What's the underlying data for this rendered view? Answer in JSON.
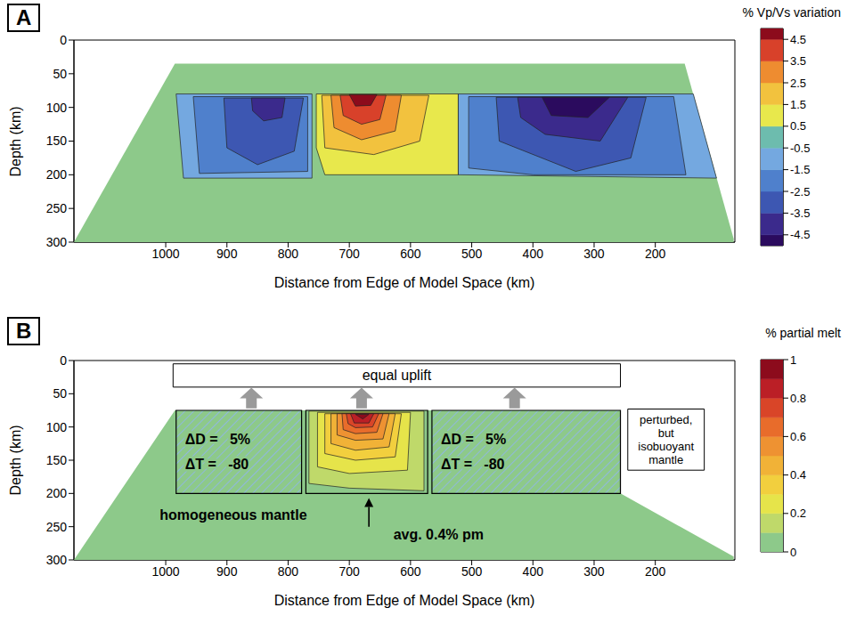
{
  "chart_data": [
    {
      "type": "contour",
      "panel_label": "A",
      "x_label": "Distance from Edge of Model Space (km)",
      "y_label": "Depth (km)",
      "xlim": [
        1150,
        70
      ],
      "xticks": [
        1000,
        900,
        800,
        700,
        600,
        500,
        400,
        300,
        200
      ],
      "ylim": [
        300,
        0
      ],
      "yticks": [
        0,
        50,
        100,
        150,
        200,
        250,
        300
      ],
      "model_space": {
        "color": "#8dc98a",
        "polygon": [
          [
            1150,
            300
          ],
          [
            985,
            35
          ],
          [
            152,
            35
          ],
          [
            72,
            295
          ],
          [
            72,
            300
          ]
        ]
      },
      "colorbar": {
        "label": "% Vp/Vs variation",
        "lim": [
          -5,
          5
        ],
        "ticks": [
          4.5,
          3.5,
          2.5,
          1.5,
          0.5,
          -0.5,
          -1.5,
          -2.5,
          -3.5,
          -4.5
        ],
        "bands": [
          {
            "from": -5,
            "to": -4.5,
            "color": "#2b0b5e"
          },
          {
            "from": -4.5,
            "to": -3.5,
            "color": "#3b2a8c"
          },
          {
            "from": -3.5,
            "to": -2.5,
            "color": "#3d57b2"
          },
          {
            "from": -2.5,
            "to": -1.5,
            "color": "#4f80cc"
          },
          {
            "from": -1.5,
            "to": -0.5,
            "color": "#74a8e0"
          },
          {
            "from": -0.5,
            "to": 0.5,
            "color": "#6dbcae"
          },
          {
            "from": 0.5,
            "to": 1.5,
            "color": "#e8e84c"
          },
          {
            "from": 1.5,
            "to": 2.5,
            "color": "#f2c23e"
          },
          {
            "from": 2.5,
            "to": 3.5,
            "color": "#ee8c30"
          },
          {
            "from": 3.5,
            "to": 4.5,
            "color": "#d8412a"
          },
          {
            "from": 4.5,
            "to": 5,
            "color": "#8c0b1c"
          }
        ]
      },
      "regions": [
        {
          "level": -1,
          "polygon": [
            [
              983,
              80
            ],
            [
              761,
              80
            ],
            [
              761,
              205
            ],
            [
              971,
              205
            ]
          ]
        },
        {
          "level": -2,
          "polygon": [
            [
              955,
              84
            ],
            [
              768,
              84
            ],
            [
              768,
              195
            ],
            [
              945,
              198
            ]
          ]
        },
        {
          "level": -3,
          "polygon": [
            [
              905,
              86
            ],
            [
              775,
              86
            ],
            [
              790,
              165
            ],
            [
              850,
              185
            ],
            [
              900,
              160
            ]
          ]
        },
        {
          "level": -4,
          "polygon": [
            [
              860,
              86
            ],
            [
              805,
              86
            ],
            [
              810,
              115
            ],
            [
              840,
              120
            ],
            [
              858,
              105
            ]
          ]
        },
        {
          "level": 1,
          "polygon": [
            [
              754,
              80
            ],
            [
              522,
              80
            ],
            [
              522,
              200
            ],
            [
              740,
              200
            ],
            [
              754,
              160
            ]
          ]
        },
        {
          "level": 2,
          "polygon": [
            [
              745,
              82
            ],
            [
              570,
              82
            ],
            [
              585,
              150
            ],
            [
              660,
              170
            ],
            [
              740,
              160
            ]
          ]
        },
        {
          "level": 3,
          "polygon": [
            [
              730,
              82
            ],
            [
              615,
              82
            ],
            [
              625,
              135
            ],
            [
              680,
              148
            ],
            [
              725,
              130
            ]
          ]
        },
        {
          "level": 4,
          "polygon": [
            [
              715,
              82
            ],
            [
              640,
              82
            ],
            [
              650,
              118
            ],
            [
              680,
              125
            ],
            [
              710,
              112
            ]
          ]
        },
        {
          "level": 4.7,
          "polygon": [
            [
              700,
              81
            ],
            [
              655,
              81
            ],
            [
              665,
              97
            ],
            [
              690,
              98
            ]
          ]
        },
        {
          "level": -1,
          "polygon": [
            [
              522,
              80
            ],
            [
              138,
              80
            ],
            [
              100,
              205
            ],
            [
              522,
              200
            ]
          ]
        },
        {
          "level": -2,
          "polygon": [
            [
              505,
              84
            ],
            [
              170,
              84
            ],
            [
              150,
              200
            ],
            [
              400,
              200
            ],
            [
              505,
              190
            ]
          ]
        },
        {
          "level": -3,
          "polygon": [
            [
              460,
              85
            ],
            [
              215,
              85
            ],
            [
              240,
              175
            ],
            [
              330,
              195
            ],
            [
              455,
              150
            ]
          ]
        },
        {
          "level": -4,
          "polygon": [
            [
              425,
              85
            ],
            [
              245,
              85
            ],
            [
              290,
              150
            ],
            [
              380,
              140
            ],
            [
              420,
              115
            ]
          ]
        },
        {
          "level": -4.7,
          "polygon": [
            [
              385,
              85
            ],
            [
              275,
              85
            ],
            [
              310,
              115
            ],
            [
              370,
              112
            ]
          ]
        }
      ]
    },
    {
      "type": "contour",
      "panel_label": "B",
      "x_label": "Distance from Edge of Model Space (km)",
      "y_label": "Depth (km)",
      "xlim": [
        1150,
        70
      ],
      "xticks": [
        1000,
        900,
        800,
        700,
        600,
        500,
        400,
        300,
        200
      ],
      "ylim": [
        300,
        0
      ],
      "yticks": [
        0,
        50,
        100,
        150,
        200,
        250,
        300
      ],
      "model_space": {
        "color": "#8dc98a",
        "polygon": [
          [
            1150,
            300
          ],
          [
            985,
            75
          ],
          [
            257,
            75
          ],
          [
            257,
            200
          ],
          [
            72,
            295
          ],
          [
            72,
            300
          ]
        ]
      },
      "colorbar": {
        "label": "% partial melt",
        "lim": [
          0,
          1
        ],
        "ticks": [
          1,
          0.8,
          0.6,
          0.4,
          0.2,
          0
        ],
        "bands": [
          {
            "from": 0,
            "to": 0.1,
            "color": "#8dc98a"
          },
          {
            "from": 0.1,
            "to": 0.2,
            "color": "#bfd96a"
          },
          {
            "from": 0.2,
            "to": 0.3,
            "color": "#e6e44a"
          },
          {
            "from": 0.3,
            "to": 0.4,
            "color": "#f2cf3e"
          },
          {
            "from": 0.4,
            "to": 0.5,
            "color": "#f1b237"
          },
          {
            "from": 0.5,
            "to": 0.6,
            "color": "#ee9232"
          },
          {
            "from": 0.6,
            "to": 0.7,
            "color": "#e86c2b"
          },
          {
            "from": 0.7,
            "to": 0.8,
            "color": "#d94528"
          },
          {
            "from": 0.8,
            "to": 0.9,
            "color": "#bb1f26"
          },
          {
            "from": 0.9,
            "to": 1,
            "color": "#8c0b1c"
          }
        ]
      },
      "perturbed_blocks": [
        {
          "polygon": [
            [
              983,
              75
            ],
            [
              778,
              75
            ],
            [
              778,
              200
            ],
            [
              983,
              200
            ]
          ],
          "text": [
            "ΔD =   5%",
            "ΔT =   -80"
          ]
        },
        {
          "polygon": [
            [
              565,
              75
            ],
            [
              257,
              75
            ],
            [
              257,
              200
            ],
            [
              565,
              200
            ]
          ],
          "text": [
            "ΔD =   5%",
            "ΔT =   -80"
          ]
        }
      ],
      "regions": [
        {
          "level": 0.15,
          "polygon": [
            [
              766,
              76
            ],
            [
              578,
              76
            ],
            [
              578,
              196
            ],
            [
              700,
              192
            ],
            [
              766,
              185
            ]
          ]
        },
        {
          "level": 0.25,
          "polygon": [
            [
              752,
              78
            ],
            [
              600,
              78
            ],
            [
              605,
              165
            ],
            [
              700,
              170
            ],
            [
              752,
              160
            ]
          ]
        },
        {
          "level": 0.35,
          "polygon": [
            [
              740,
              80
            ],
            [
              615,
              80
            ],
            [
              625,
              145
            ],
            [
              690,
              150
            ],
            [
              740,
              140
            ]
          ]
        },
        {
          "level": 0.45,
          "polygon": [
            [
              730,
              80
            ],
            [
              625,
              80
            ],
            [
              635,
              130
            ],
            [
              690,
              135
            ],
            [
              730,
              125
            ]
          ]
        },
        {
          "level": 0.55,
          "polygon": [
            [
              720,
              80
            ],
            [
              635,
              80
            ],
            [
              645,
              118
            ],
            [
              690,
              120
            ],
            [
              720,
              112
            ]
          ]
        },
        {
          "level": 0.65,
          "polygon": [
            [
              712,
              80
            ],
            [
              645,
              80
            ],
            [
              655,
              108
            ],
            [
              690,
              110
            ],
            [
              710,
              104
            ]
          ]
        },
        {
          "level": 0.75,
          "polygon": [
            [
              705,
              80
            ],
            [
              652,
              80
            ],
            [
              662,
              100
            ],
            [
              690,
              101
            ],
            [
              702,
              95
            ]
          ]
        },
        {
          "level": 0.85,
          "polygon": [
            [
              698,
              80
            ],
            [
              660,
              80
            ],
            [
              668,
              94
            ],
            [
              692,
              94
            ]
          ]
        },
        {
          "level": 0.95,
          "polygon": [
            [
              690,
              81
            ],
            [
              668,
              81
            ],
            [
              678,
              88
            ]
          ]
        }
      ],
      "melt_block": {
        "polygon": [
          [
            771,
            75
          ],
          [
            572,
            75
          ],
          [
            572,
            200
          ],
          [
            771,
            200
          ]
        ]
      },
      "boxes": [
        {
          "text": "equal uplift",
          "polygon": [
            [
              988,
              5
            ],
            [
              257,
              5
            ],
            [
              257,
              40
            ],
            [
              988,
              40
            ]
          ]
        },
        {
          "text": "perturbed, but isobuoyant mantle",
          "polygon": [
            [
              245,
              73
            ],
            [
              120,
              73
            ],
            [
              120,
              165
            ],
            [
              245,
              165
            ]
          ]
        }
      ],
      "arrows": [
        {
          "x": 860,
          "from": 72,
          "to": 41
        },
        {
          "x": 680,
          "from": 72,
          "to": 41
        },
        {
          "x": 430,
          "from": 72,
          "to": 41
        }
      ],
      "annotations": [
        {
          "text": "homogeneous mantle",
          "x": 1010,
          "y": 232
        },
        {
          "text": "avg. 0.4% pm",
          "x": 628,
          "y": 262,
          "arrow": [
            [
              668,
              250
            ],
            [
              668,
              207
            ]
          ]
        }
      ]
    }
  ]
}
